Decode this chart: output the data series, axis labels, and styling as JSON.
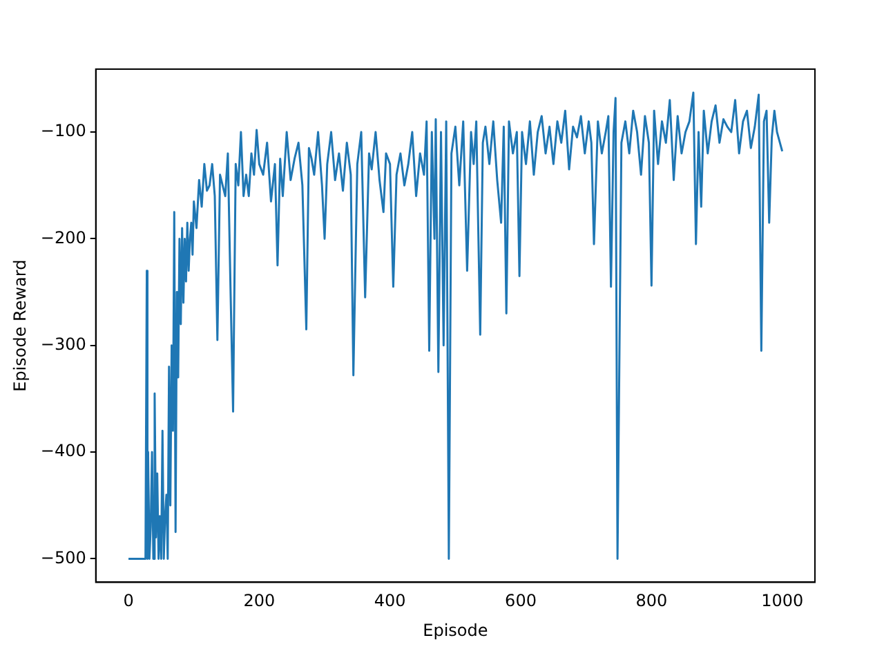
{
  "chart_data": {
    "type": "line",
    "xlabel": "Episode",
    "ylabel": "Episode Reward",
    "xlim": [
      -50,
      1050
    ],
    "ylim": [
      -522,
      -41
    ],
    "xticks": [
      0,
      200,
      400,
      600,
      800,
      1000
    ],
    "yticks": [
      -500,
      -400,
      -300,
      -200,
      -100
    ],
    "grid": false,
    "legend": false,
    "marker": "none",
    "line_style": "solid",
    "series": [
      {
        "color": "#1f77b4",
        "x": [
          0,
          26,
          28,
          29,
          30,
          32,
          34,
          36,
          38,
          40,
          42,
          44,
          46,
          48,
          50,
          52,
          54,
          56,
          58,
          60,
          62,
          64,
          66,
          68,
          70,
          72,
          74,
          76,
          78,
          80,
          82,
          84,
          86,
          88,
          90,
          92,
          94,
          96,
          98,
          100,
          104,
          108,
          112,
          116,
          120,
          124,
          128,
          132,
          136,
          140,
          144,
          148,
          152,
          156,
          160,
          164,
          168,
          172,
          176,
          180,
          184,
          188,
          192,
          196,
          200,
          206,
          212,
          218,
          224,
          228,
          232,
          236,
          242,
          248,
          254,
          260,
          266,
          272,
          276,
          280,
          284,
          290,
          296,
          300,
          304,
          310,
          316,
          322,
          328,
          334,
          340,
          344,
          350,
          356,
          362,
          368,
          372,
          378,
          384,
          390,
          394,
          400,
          405,
          410,
          416,
          422,
          428,
          434,
          440,
          446,
          452,
          456,
          460,
          464,
          468,
          470,
          474,
          478,
          482,
          486,
          490,
          494,
          500,
          506,
          512,
          518,
          524,
          528,
          532,
          538,
          542,
          546,
          552,
          558,
          564,
          570,
          574,
          578,
          582,
          588,
          594,
          598,
          602,
          608,
          614,
          620,
          626,
          632,
          638,
          644,
          650,
          656,
          662,
          668,
          674,
          680,
          686,
          692,
          698,
          704,
          708,
          712,
          718,
          724,
          730,
          734,
          738,
          742,
          745,
          748,
          754,
          760,
          766,
          772,
          778,
          784,
          790,
          796,
          800,
          804,
          810,
          816,
          822,
          828,
          834,
          840,
          846,
          852,
          858,
          864,
          868,
          872,
          876,
          880,
          886,
          892,
          898,
          904,
          910,
          916,
          922,
          928,
          934,
          940,
          946,
          952,
          958,
          964,
          968,
          972,
          976,
          980,
          984,
          988,
          992,
          1000
        ],
        "values": [
          -500,
          -500,
          -230,
          -500,
          -400,
          -500,
          -470,
          -400,
          -500,
          -345,
          -480,
          -420,
          -500,
          -460,
          -500,
          -380,
          -500,
          -460,
          -440,
          -500,
          -320,
          -450,
          -300,
          -380,
          -175,
          -475,
          -250,
          -330,
          -200,
          -280,
          -190,
          -260,
          -200,
          -240,
          -185,
          -230,
          -200,
          -185,
          -215,
          -165,
          -190,
          -145,
          -170,
          -130,
          -155,
          -150,
          -130,
          -160,
          -295,
          -140,
          -150,
          -160,
          -120,
          -245,
          -362,
          -130,
          -150,
          -100,
          -160,
          -140,
          -160,
          -120,
          -140,
          -98,
          -130,
          -140,
          -110,
          -165,
          -130,
          -225,
          -125,
          -160,
          -100,
          -145,
          -125,
          -110,
          -150,
          -285,
          -115,
          -125,
          -140,
          -100,
          -150,
          -200,
          -130,
          -100,
          -145,
          -120,
          -155,
          -110,
          -140,
          -328,
          -130,
          -100,
          -255,
          -120,
          -135,
          -100,
          -145,
          -175,
          -120,
          -130,
          -245,
          -140,
          -120,
          -150,
          -130,
          -100,
          -160,
          -120,
          -140,
          -90,
          -305,
          -100,
          -200,
          -88,
          -325,
          -100,
          -300,
          -90,
          -500,
          -120,
          -95,
          -150,
          -90,
          -230,
          -100,
          -130,
          -90,
          -290,
          -110,
          -95,
          -130,
          -90,
          -145,
          -185,
          -95,
          -270,
          -90,
          -120,
          -100,
          -235,
          -100,
          -130,
          -90,
          -140,
          -100,
          -85,
          -120,
          -95,
          -130,
          -90,
          -110,
          -80,
          -135,
          -95,
          -105,
          -85,
          -120,
          -90,
          -110,
          -205,
          -90,
          -120,
          -100,
          -85,
          -245,
          -100,
          -68,
          -500,
          -110,
          -90,
          -120,
          -80,
          -100,
          -140,
          -85,
          -110,
          -244,
          -80,
          -130,
          -90,
          -110,
          -70,
          -145,
          -85,
          -120,
          -100,
          -90,
          -63,
          -205,
          -100,
          -170,
          -80,
          -120,
          -90,
          -75,
          -110,
          -88,
          -95,
          -100,
          -70,
          -120,
          -90,
          -80,
          -115,
          -95,
          -65,
          -305,
          -90,
          -80,
          -185,
          -105,
          -80,
          -100,
          -118
        ]
      }
    ]
  }
}
